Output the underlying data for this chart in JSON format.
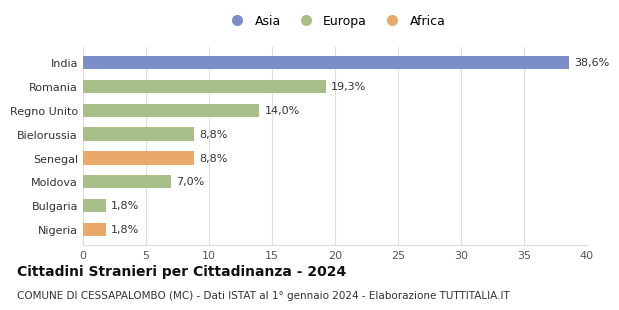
{
  "categories": [
    "Nigeria",
    "Bulgaria",
    "Moldova",
    "Senegal",
    "Bielorussia",
    "Regno Unito",
    "Romania",
    "India"
  ],
  "values": [
    1.8,
    1.8,
    7.0,
    8.8,
    8.8,
    14.0,
    19.3,
    38.6
  ],
  "labels": [
    "1,8%",
    "1,8%",
    "7,0%",
    "8,8%",
    "8,8%",
    "14,0%",
    "19,3%",
    "38,6%"
  ],
  "colors": [
    "#e8a96a",
    "#a8bf8a",
    "#a8bf8a",
    "#e8a96a",
    "#a8bf8a",
    "#a8bf8a",
    "#a8bf8a",
    "#7b8ec8"
  ],
  "legend_labels": [
    "Asia",
    "Europa",
    "Africa"
  ],
  "legend_colors": [
    "#7b8ec8",
    "#a8bf8a",
    "#e8a96a"
  ],
  "xlim": [
    0,
    40
  ],
  "xticks": [
    0,
    5,
    10,
    15,
    20,
    25,
    30,
    35,
    40
  ],
  "title": "Cittadini Stranieri per Cittadinanza - 2024",
  "subtitle": "COMUNE DI CESSAPALOMBO (MC) - Dati ISTAT al 1° gennaio 2024 - Elaborazione TUTTITALIA.IT",
  "bg_color": "#ffffff",
  "grid_color": "#dddddd",
  "bar_height": 0.55,
  "title_fontsize": 10,
  "subtitle_fontsize": 7.5,
  "label_fontsize": 8,
  "tick_fontsize": 8,
  "legend_fontsize": 9
}
